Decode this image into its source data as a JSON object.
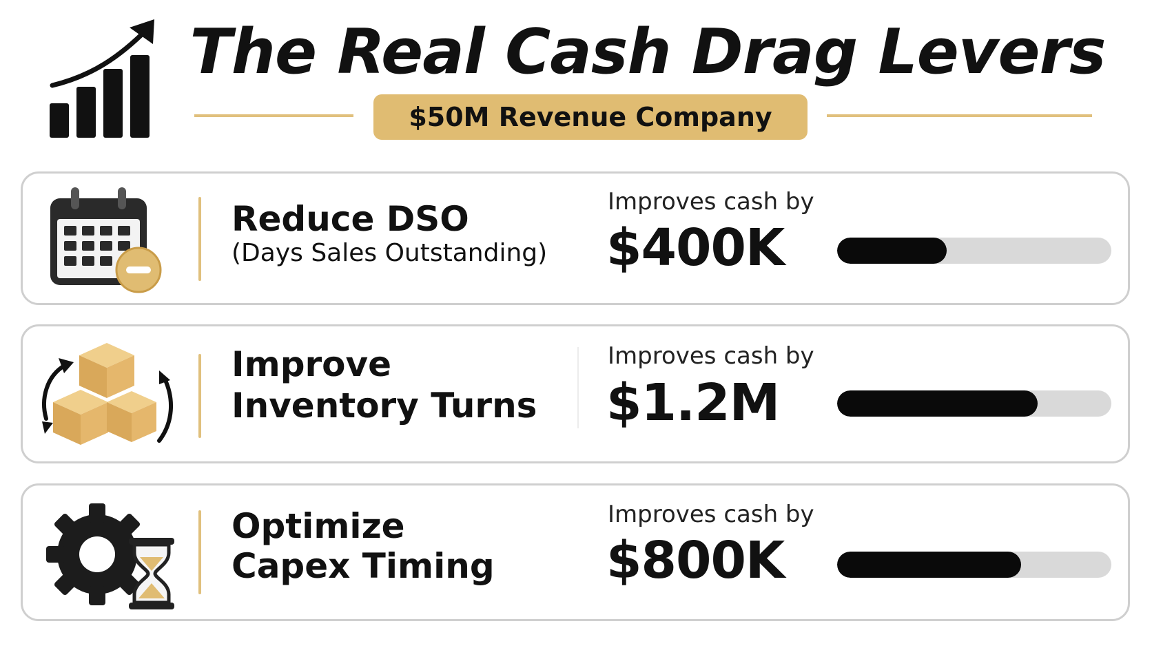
{
  "header": {
    "title": "The Real Cash Drag Levers",
    "subtitle": "$50M Revenue Company",
    "icon": "rising-bar-chart-icon"
  },
  "levers": [
    {
      "title_line1": "Reduce DSO",
      "title_line2": "",
      "note": "(Days Sales Outstanding)",
      "cash_label": "Improves cash by",
      "cash_value": "$400K",
      "bar_fraction": 0.4,
      "icon": "calendar-minus-icon"
    },
    {
      "title_line1": "Improve",
      "title_line2": "Inventory Turns",
      "note": "",
      "cash_label": "Improves cash by",
      "cash_value": "$1.2M",
      "bar_fraction": 0.73,
      "icon": "inventory-boxes-cycle-icon"
    },
    {
      "title_line1": "Optimize",
      "title_line2": "Capex Timing",
      "note": "",
      "cash_label": "Improves cash by",
      "cash_value": "$800K",
      "bar_fraction": 0.67,
      "icon": "gear-hourglass-icon"
    }
  ],
  "colors": {
    "accent_gold": "#e0bc72",
    "bar_fill": "#0a0a0a",
    "bar_track": "#d9d9d9",
    "card_border": "#cfcfcf"
  }
}
